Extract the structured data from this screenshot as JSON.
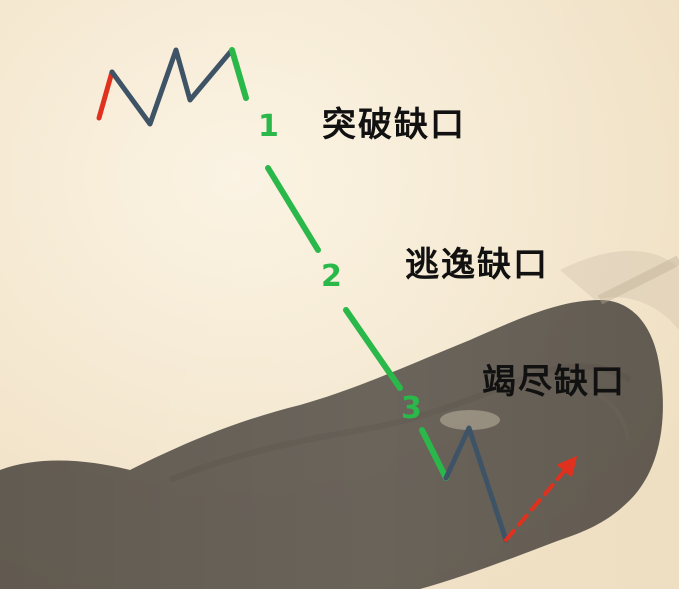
{
  "colors": {
    "background": "#f6ead2",
    "bull_silhouette": "#3a3530",
    "up_leg": "#e0301e",
    "down_leg": "#3f5366",
    "gap_line": "#2bb84a",
    "breakout_arrow": "#e0301e",
    "label_text": "#111111"
  },
  "gap_types": [
    {
      "number": "1",
      "label": "突破缺口"
    },
    {
      "number": "2",
      "label": "逃逸缺口"
    },
    {
      "number": "3",
      "label": "竭尽缺口"
    }
  ]
}
